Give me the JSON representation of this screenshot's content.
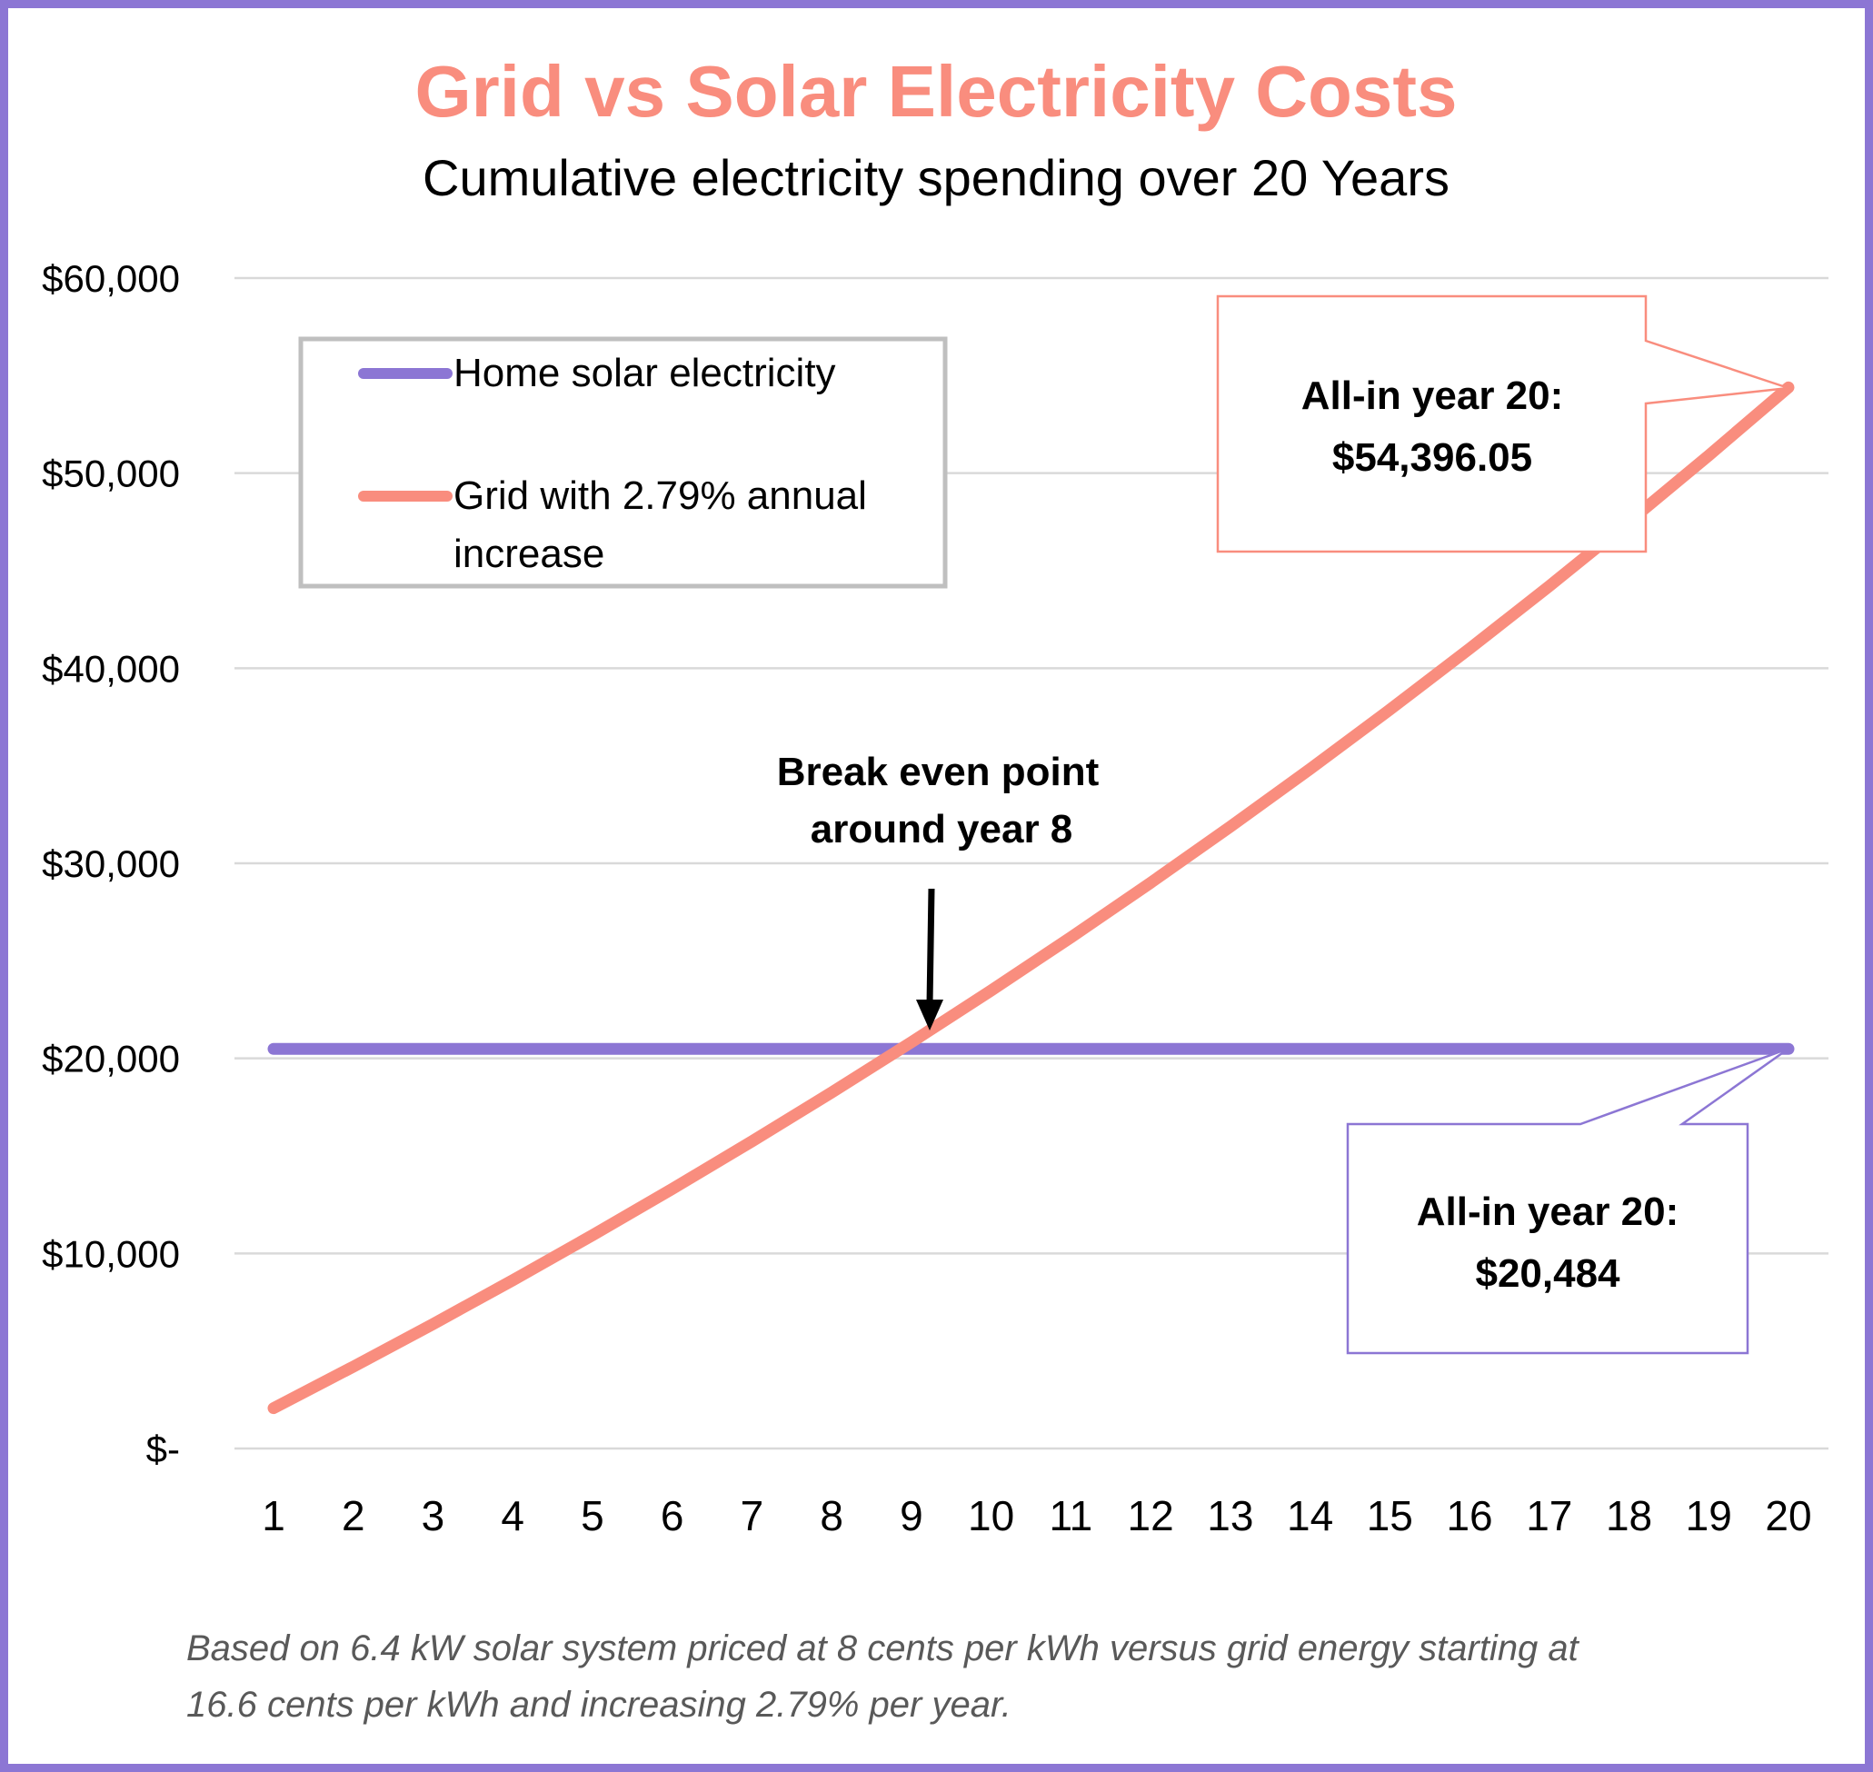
{
  "chart_data": {
    "type": "line",
    "title": "Grid vs Solar Electricity Costs",
    "subtitle": "Cumulative electricity spending over 20 Years",
    "xlabel": "",
    "ylabel": "",
    "x": [
      1,
      2,
      3,
      4,
      5,
      6,
      7,
      8,
      9,
      10,
      11,
      12,
      13,
      14,
      15,
      16,
      17,
      18,
      19,
      20
    ],
    "ylim": [
      0,
      60000
    ],
    "yticks": [
      0,
      10000,
      20000,
      30000,
      40000,
      50000,
      60000
    ],
    "ytick_labels": [
      "$-",
      "$10,000",
      "$20,000",
      "$30,000",
      "$40,000",
      "$50,000",
      "$60,000"
    ],
    "grid": true,
    "legend_position": "top-left",
    "series": [
      {
        "name": "Home solar electricity",
        "color": "#8C76D4",
        "values": [
          20484,
          20484,
          20484,
          20484,
          20484,
          20484,
          20484,
          20484,
          20484,
          20484,
          20484,
          20484,
          20484,
          20484,
          20484,
          20484,
          20484,
          20484,
          20484,
          20484
        ]
      },
      {
        "name": "Grid with 2.79% annual increase",
        "color": "#F98D7E",
        "values": [
          2068,
          4194,
          6378,
          8624,
          10933,
          13306,
          15745,
          18252,
          20829,
          23478,
          26201,
          29000,
          31877,
          34834,
          37874,
          40999,
          44210,
          47512,
          50905,
          54396.05
        ]
      }
    ],
    "annotations": {
      "grid_end_line1": "All-in year 20:",
      "grid_end_line2": "$54,396.05",
      "solar_end_line1": "All-in year 20:",
      "solar_end_line2": "$20,484",
      "break_even_line1": "Break even point",
      "break_even_line2": "around year 8"
    },
    "footnote_line1": "Based on 6.4 kW solar system priced at 8 cents per kWh versus grid energy starting at",
    "footnote_line2": "16.6 cents per kWh and increasing 2.79% per year."
  },
  "legend": {
    "solar_label": "Home solar electricity",
    "grid_label_line1": "Grid with 2.79% annual",
    "grid_label_line2": "increase"
  },
  "colors": {
    "frame": "#8C76D4",
    "title": "#F98D7E",
    "gridline": "#D9D9D9"
  }
}
